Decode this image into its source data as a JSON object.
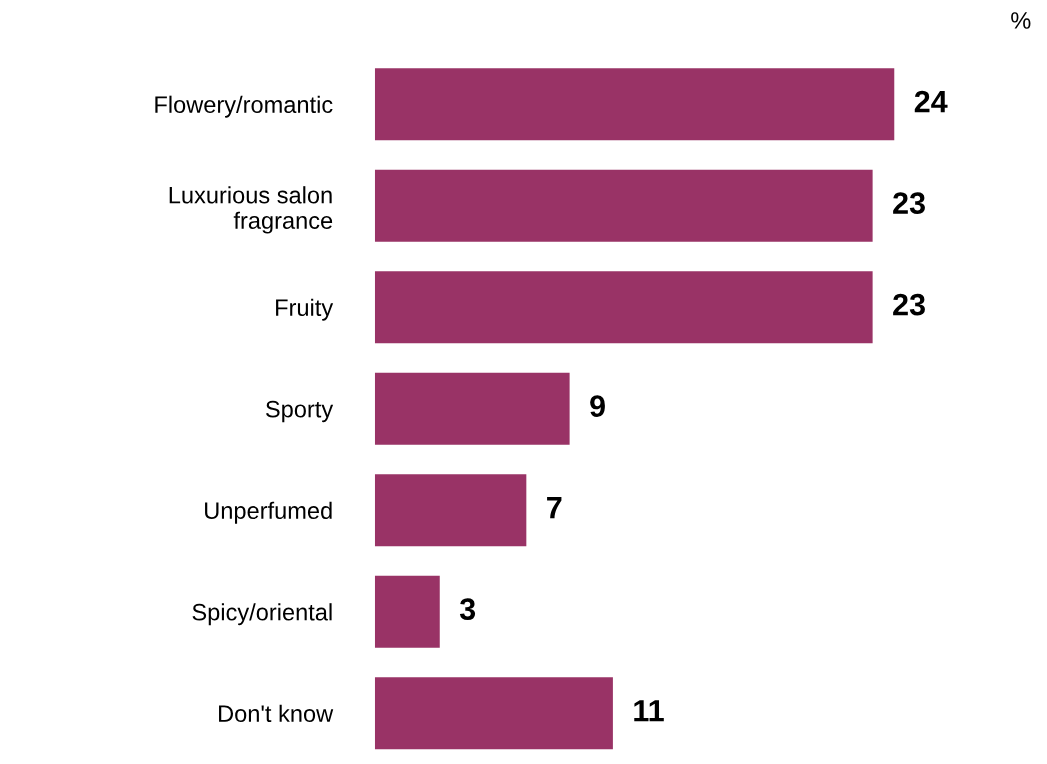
{
  "chart_data": {
    "type": "bar",
    "orientation": "horizontal",
    "categories": [
      "Flowery/romantic",
      "Luxurious salon\nfragrance",
      "Fruity",
      "Sporty",
      "Unperfumed",
      "Spicy/oriental",
      "Don't know"
    ],
    "values": [
      24,
      23,
      23,
      9,
      7,
      3,
      11
    ],
    "color": "#993366",
    "data_labels": true,
    "tick_labels": "y",
    "annotations": [
      "%"
    ]
  }
}
